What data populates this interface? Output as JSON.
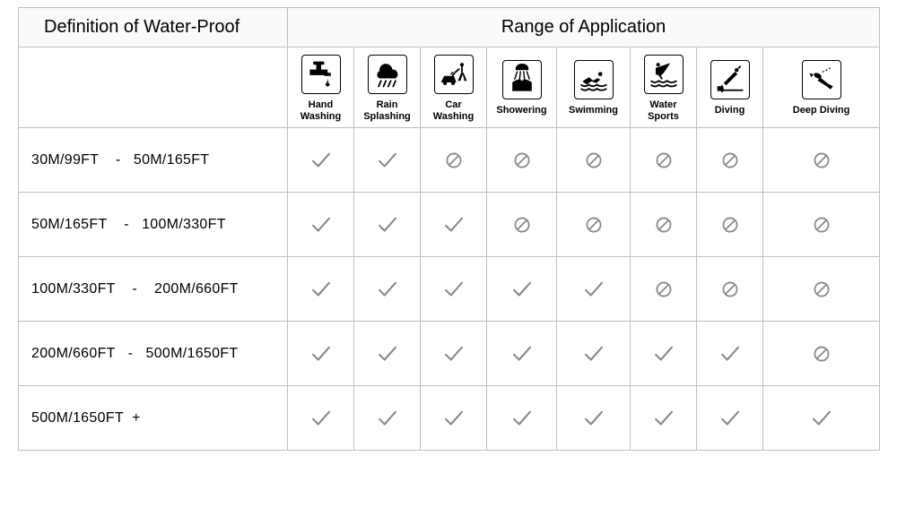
{
  "colors": {
    "border": "#bfbfbf",
    "background": "#ffffff",
    "header_bg": "#fafafa",
    "text": "#000000",
    "check": "#8a8a8a",
    "prohibit": "#8a8a8a",
    "icon_fg": "#000000"
  },
  "header": {
    "left": "Definition of Water-Proof",
    "right": "Range of Application"
  },
  "activities": [
    {
      "label": "Hand\nWashing",
      "icon": "faucet"
    },
    {
      "label": "Rain\nSplashing",
      "icon": "rain"
    },
    {
      "label": "Car\nWashing",
      "icon": "carwash"
    },
    {
      "label": "Showering",
      "icon": "shower"
    },
    {
      "label": "Swimming",
      "icon": "swim"
    },
    {
      "label": "Water\nSports",
      "icon": "watersport"
    },
    {
      "label": "Diving",
      "icon": "diving"
    },
    {
      "label": "Deep Diving",
      "icon": "deepdive"
    }
  ],
  "rows": [
    {
      "range": "30M/99FT    -   50M/165FT",
      "marks": [
        "y",
        "y",
        "n",
        "n",
        "n",
        "n",
        "n",
        "n"
      ]
    },
    {
      "range": "50M/165FT    -   100M/330FT",
      "marks": [
        "y",
        "y",
        "y",
        "n",
        "n",
        "n",
        "n",
        "n"
      ]
    },
    {
      "range": "100M/330FT    -    200M/660FT",
      "marks": [
        "y",
        "y",
        "y",
        "y",
        "y",
        "n",
        "n",
        "n"
      ]
    },
    {
      "range": "200M/660FT   -   500M/1650FT",
      "marks": [
        "y",
        "y",
        "y",
        "y",
        "y",
        "y",
        "y",
        "n"
      ]
    },
    {
      "range": "500M/1650FT  +",
      "marks": [
        "y",
        "y",
        "y",
        "y",
        "y",
        "y",
        "y",
        "y"
      ]
    }
  ]
}
